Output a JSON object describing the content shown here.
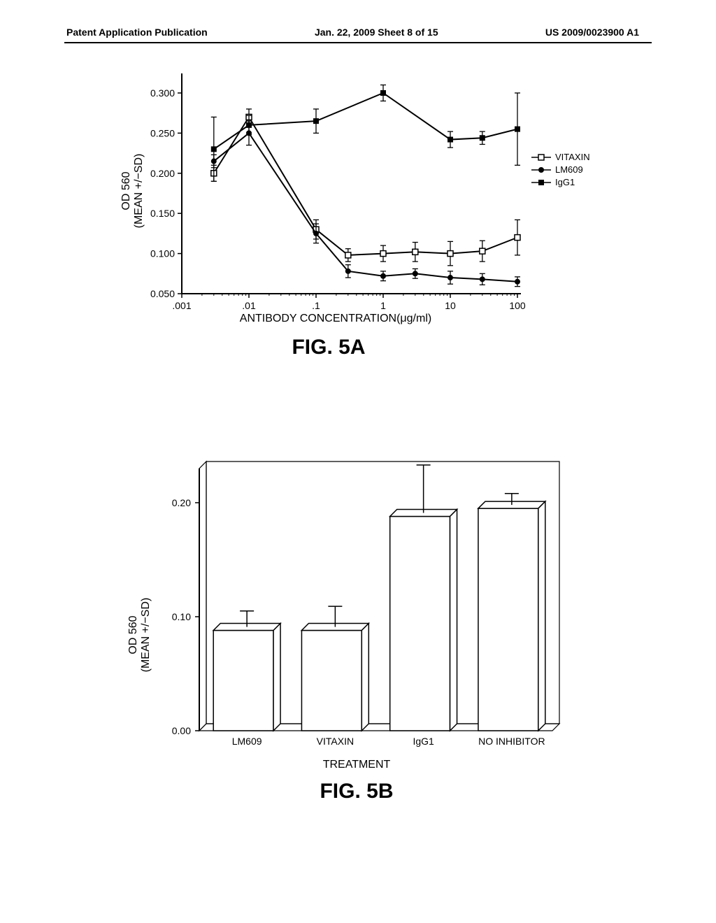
{
  "header": {
    "left": "Patent Application Publication",
    "center": "Jan. 22, 2009  Sheet 8 of 15",
    "right": "US 2009/0023900 A1"
  },
  "figA": {
    "type": "line",
    "title": "FIG. 5A",
    "xlabel": "ANTIBODY CONCENTRATION(μg/ml)",
    "ylabel_line1": "OD 560",
    "ylabel_line2": "(MEAN +/−SD)",
    "xscale": "log",
    "xlim": [
      0.001,
      100
    ],
    "ylim": [
      0.05,
      0.32
    ],
    "xticks": [
      0.001,
      0.01,
      0.1,
      1,
      10,
      100
    ],
    "xtick_labels": [
      ".001",
      ".01",
      ".1",
      "1",
      "10",
      "100"
    ],
    "yticks": [
      0.05,
      0.1,
      0.15,
      0.2,
      0.25,
      0.3
    ],
    "ytick_labels": [
      "0.050",
      "0.100",
      "0.150",
      "0.200",
      "0.250",
      "0.300"
    ],
    "label_fontsize": 16,
    "tick_fontsize": 14,
    "background_color": "#ffffff",
    "axis_color": "#000000",
    "line_width": 2,
    "legend": {
      "items": [
        "VITAXIN",
        "LM609",
        "IgG1"
      ],
      "markers": [
        "open-square",
        "filled-circle",
        "filled-square"
      ],
      "fontsize": 13
    },
    "series": [
      {
        "name": "VITAXIN",
        "marker": "open-square",
        "color": "#000000",
        "x": [
          0.003,
          0.01,
          0.1,
          0.3,
          1,
          3,
          10,
          30,
          100
        ],
        "y": [
          0.2,
          0.27,
          0.13,
          0.098,
          0.1,
          0.102,
          0.1,
          0.103,
          0.12
        ],
        "err": [
          0.01,
          0.01,
          0.012,
          0.008,
          0.01,
          0.012,
          0.015,
          0.013,
          0.022
        ]
      },
      {
        "name": "LM609",
        "marker": "filled-circle",
        "color": "#000000",
        "x": [
          0.003,
          0.01,
          0.1,
          0.3,
          1,
          3,
          10,
          30,
          100
        ],
        "y": [
          0.215,
          0.25,
          0.125,
          0.078,
          0.072,
          0.075,
          0.07,
          0.068,
          0.065
        ],
        "err": [
          0.008,
          0.015,
          0.012,
          0.008,
          0.006,
          0.006,
          0.008,
          0.007,
          0.006
        ]
      },
      {
        "name": "IgG1",
        "marker": "filled-square",
        "color": "#000000",
        "x": [
          0.003,
          0.01,
          0.1,
          1,
          10,
          30,
          100
        ],
        "y": [
          0.23,
          0.26,
          0.265,
          0.3,
          0.242,
          0.244,
          0.255
        ],
        "err": [
          0.04,
          0.012,
          0.015,
          0.01,
          0.01,
          0.008,
          0.045
        ]
      }
    ]
  },
  "figB": {
    "type": "bar",
    "title": "FIG. 5B",
    "xlabel": "TREATMENT",
    "ylabel_line1": "OD 560",
    "ylabel_line2": "(MEAN +/−SD)",
    "ylim": [
      0.0,
      0.23
    ],
    "yticks": [
      0.0,
      0.1,
      0.2
    ],
    "ytick_labels": [
      "0.00",
      "0.10",
      "0.20"
    ],
    "label_fontsize": 16,
    "tick_fontsize": 14,
    "background_color": "#ffffff",
    "axis_color": "#000000",
    "bar_fill": "#ffffff",
    "bar_stroke": "#000000",
    "bar_depth": 10,
    "bar_width": 0.68,
    "categories": [
      "LM609",
      "VITAXIN",
      "IgG1",
      "NO INHIBITOR"
    ],
    "values": [
      0.088,
      0.088,
      0.188,
      0.195
    ],
    "errors": [
      0.014,
      0.018,
      0.042,
      0.01
    ]
  }
}
